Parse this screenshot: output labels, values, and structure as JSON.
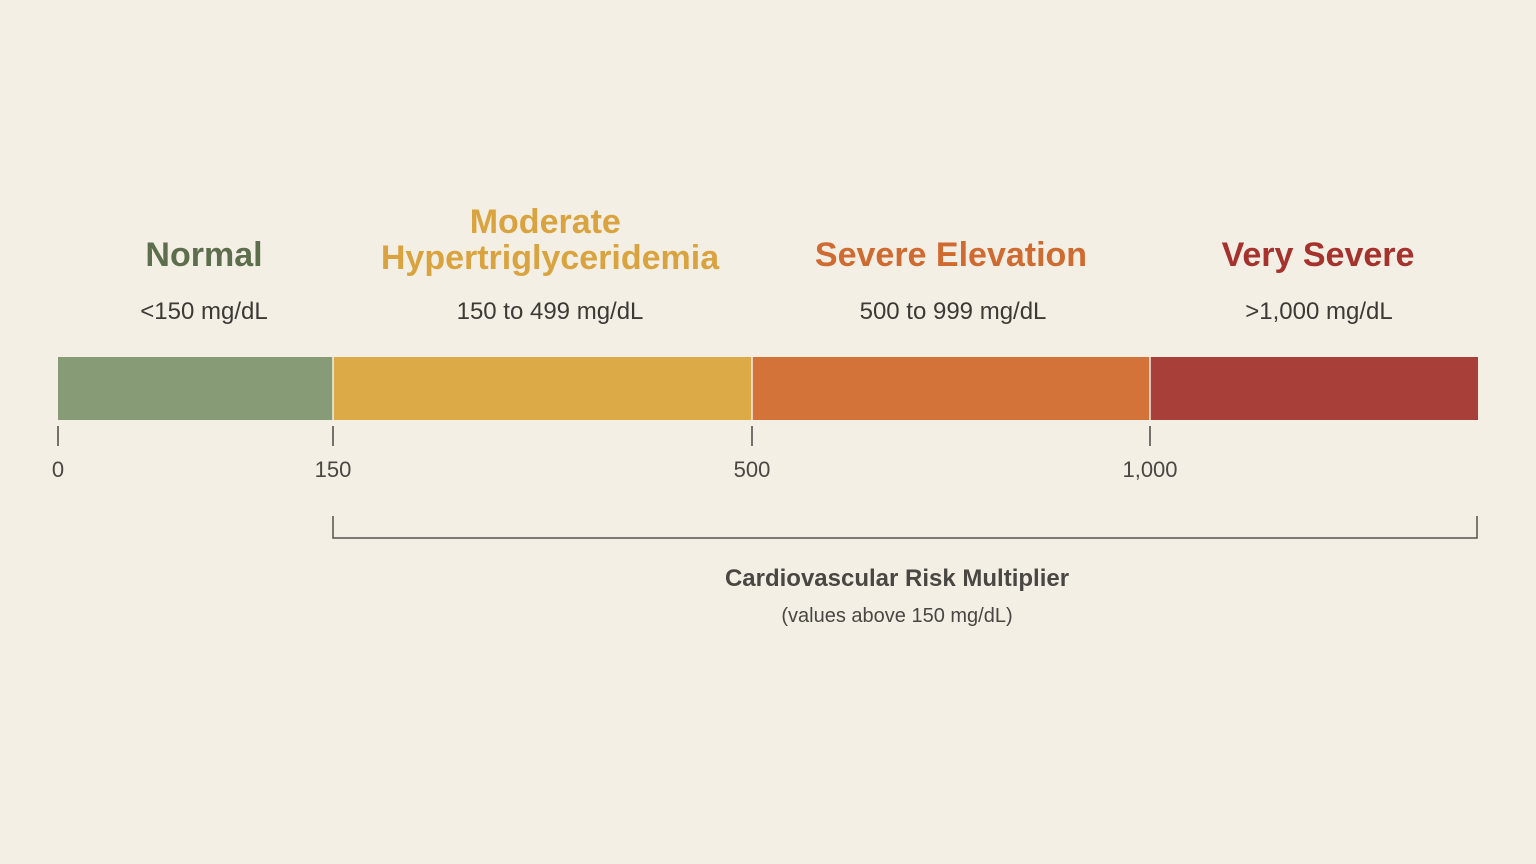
{
  "scale": {
    "segments": [
      {
        "title_lines": [
          "Normal"
        ],
        "range": "<150 mg/dL",
        "color": "#889b77",
        "title_color": "#5d6e4d"
      },
      {
        "title_lines": [
          "Moderate",
          "Hypertriglyceridemia"
        ],
        "range": "150 to 499 mg/dL",
        "color": "#ddaa48",
        "title_color": "#d9a43f"
      },
      {
        "title_lines": [
          "Severe Elevation"
        ],
        "range": "500 to 999 mg/dL",
        "color": "#d3733a",
        "title_color": "#cf6a30"
      },
      {
        "title_lines": [
          "Very Severe"
        ],
        "range": ">1,000 mg/dL",
        "color": "#a83f38",
        "title_color": "#a6322d"
      }
    ],
    "ticks": [
      "0",
      "150",
      "500",
      "1,000"
    ]
  },
  "risk": {
    "title": "Cardiovascular Risk Multiplier",
    "subtitle": "(values above 150 mg/dL)"
  }
}
